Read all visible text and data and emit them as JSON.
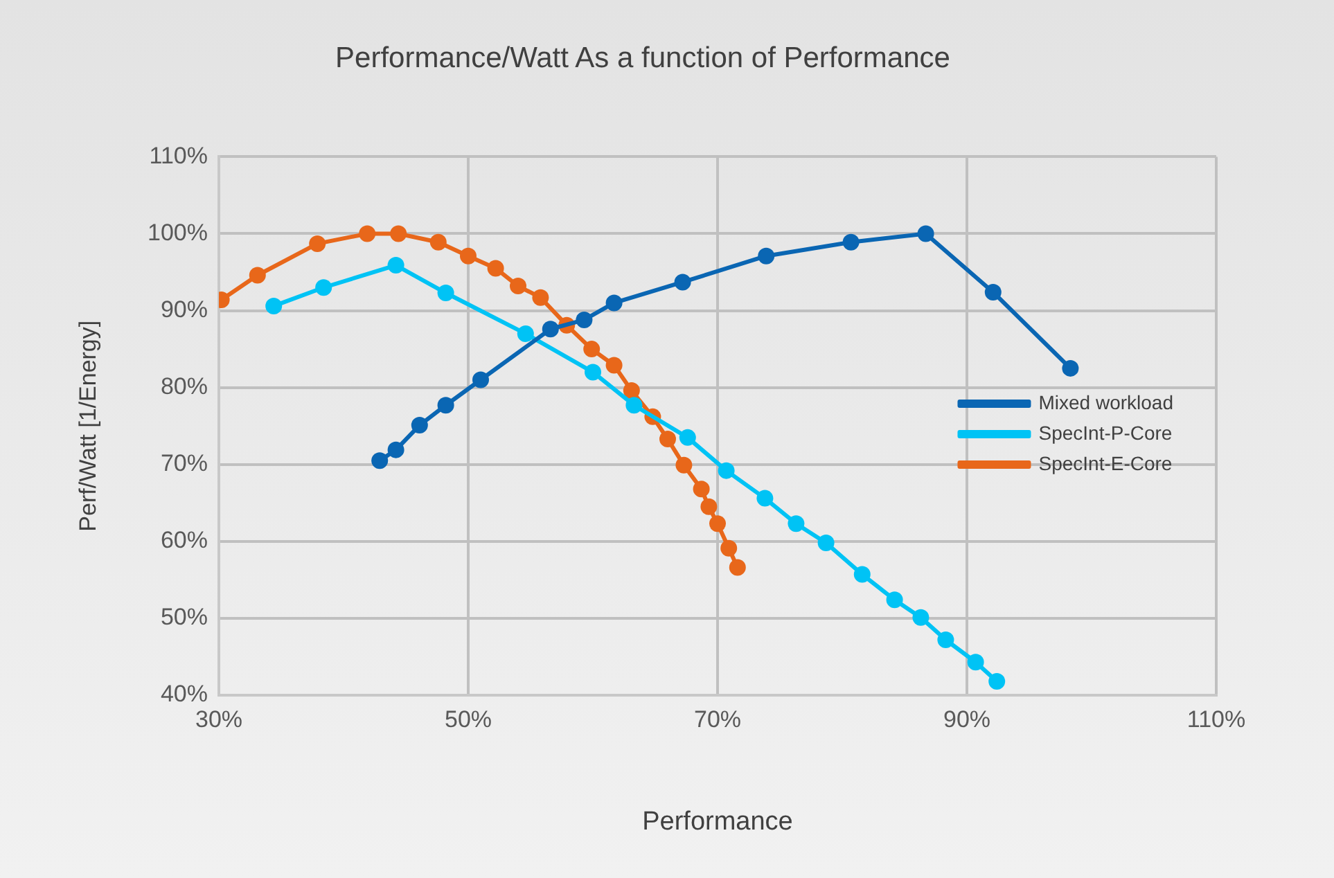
{
  "chart_data": {
    "type": "line",
    "title": "Performance/Watt As a function of Performance",
    "xlabel": "Performance",
    "ylabel": "Perf/Watt [1/Energy]",
    "xlim": [
      30,
      110
    ],
    "xticks": [
      {
        "value": 30,
        "label": "30%"
      },
      {
        "value": 50,
        "label": "50%"
      },
      {
        "value": 70,
        "label": "70%"
      },
      {
        "value": 90,
        "label": "90%"
      },
      {
        "value": 110,
        "label": "110%"
      }
    ],
    "ylim": [
      40,
      110
    ],
    "yticks": [
      {
        "value": 40,
        "label": "40%"
      },
      {
        "value": 50,
        "label": "50%"
      },
      {
        "value": 60,
        "label": "60%"
      },
      {
        "value": 70,
        "label": "70%"
      },
      {
        "value": 80,
        "label": "80%"
      },
      {
        "value": 90,
        "label": "90%"
      },
      {
        "value": 100,
        "label": "100%"
      },
      {
        "value": 110,
        "label": "110%"
      }
    ],
    "grid": true,
    "legend": "right",
    "marker": "circle",
    "line_style": "solid",
    "series": [
      {
        "name": "Mixed workload",
        "color": "#0a66b3",
        "x": [
          42.9,
          44.2,
          46.1,
          48.2,
          51.0,
          56.6,
          59.3,
          61.7,
          67.2,
          73.9,
          80.7,
          86.7,
          92.1,
          98.3
        ],
        "values": [
          70.5,
          71.9,
          75.1,
          77.7,
          81.0,
          87.6,
          88.8,
          91.0,
          93.7,
          97.1,
          98.9,
          100.0,
          92.4,
          82.5
        ]
      },
      {
        "name": "SpecInt-P-Core",
        "color": "#00c3f5",
        "x": [
          34.4,
          38.4,
          44.2,
          48.2,
          54.6,
          60.0,
          63.3,
          67.6,
          70.7,
          73.8,
          76.3,
          78.7,
          81.6,
          84.2,
          86.3,
          88.3,
          90.7,
          92.4
        ],
        "values": [
          90.6,
          93.0,
          95.9,
          92.3,
          87.0,
          82.0,
          77.7,
          73.5,
          69.2,
          65.6,
          62.3,
          59.8,
          55.7,
          52.4,
          50.1,
          47.2,
          44.3,
          41.8
        ]
      },
      {
        "name": "SpecInt-E-Core",
        "color": "#e8671a",
        "x": [
          30.2,
          33.1,
          37.9,
          41.9,
          44.4,
          47.6,
          50.0,
          52.2,
          54.0,
          55.8,
          57.9,
          59.9,
          61.7,
          63.1,
          64.8,
          66.0,
          67.3,
          68.7,
          69.3,
          70.0,
          70.9,
          71.6
        ],
        "values": [
          91.4,
          94.6,
          98.7,
          100.0,
          100.0,
          98.9,
          97.1,
          95.5,
          93.2,
          91.7,
          88.1,
          85.0,
          82.9,
          79.6,
          76.2,
          73.3,
          69.9,
          66.8,
          64.5,
          62.3,
          59.1,
          56.6
        ]
      }
    ]
  }
}
